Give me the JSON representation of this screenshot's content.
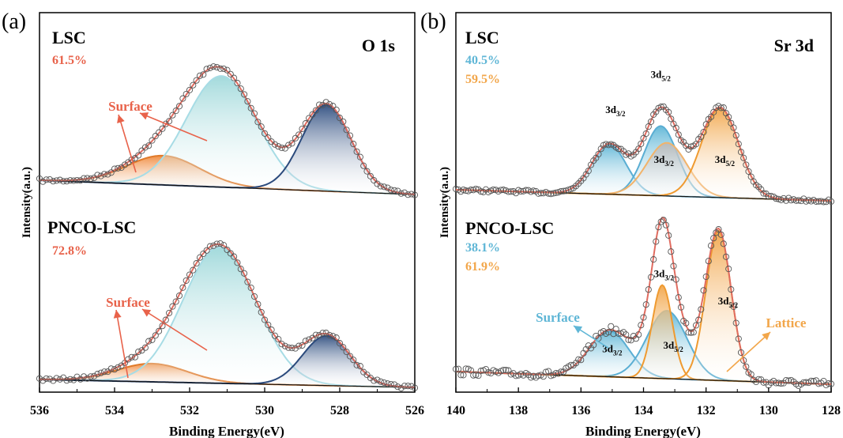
{
  "chart_data": [
    {
      "panel_label": "(a)",
      "type": "line",
      "element": "O 1s",
      "xlabel": "Binding Energy(eV)",
      "ylabel": "Intensity(a.u.)",
      "xlim": [
        536,
        526
      ],
      "xticks": [
        "536",
        "534",
        "532",
        "530",
        "528",
        "526"
      ],
      "subplots": [
        {
          "sample": "LSC",
          "percentages": [
            {
              "text": "61.5%",
              "color": "#e8624a"
            }
          ],
          "annotations": [
            {
              "text": "Surface",
              "color": "#e8624a"
            }
          ],
          "peaks": [
            {
              "center": 532.7,
              "fwhm": 2.3,
              "height": 0.2,
              "fill": "#f08a3c",
              "edge": "#e07a2a",
              "role": "surface"
            },
            {
              "center": 531.15,
              "fwhm": 2.2,
              "height": 0.76,
              "fill": "#9ed8da",
              "edge": "#a7dce5",
              "role": "bulk"
            },
            {
              "center": 528.35,
              "fwhm": 1.55,
              "height": 0.59,
              "fill": "#2f4e80",
              "edge": "#2b4a7c",
              "role": "lattice"
            }
          ]
        },
        {
          "sample": "PNCO-LSC",
          "percentages": [
            {
              "text": "72.8%",
              "color": "#e8624a"
            }
          ],
          "annotations": [
            {
              "text": "Surface",
              "color": "#e8624a"
            }
          ],
          "peaks": [
            {
              "center": 533.0,
              "fwhm": 2.2,
              "height": 0.11,
              "fill": "#f08a3c",
              "edge": "#e07a2a",
              "role": "surface"
            },
            {
              "center": 531.2,
              "fwhm": 2.3,
              "height": 0.82,
              "fill": "#9ed8da",
              "edge": "#a7dce5",
              "role": "bulk"
            },
            {
              "center": 528.35,
              "fwhm": 1.5,
              "height": 0.3,
              "fill": "#2f4e80",
              "edge": "#2b4a7c",
              "role": "lattice"
            }
          ]
        }
      ]
    },
    {
      "panel_label": "(b)",
      "type": "line",
      "element": "Sr 3d",
      "xlabel": "Binding Energy(eV)",
      "ylabel": "Intensity(a.u.)",
      "xlim": [
        140,
        128
      ],
      "xticks": [
        "140",
        "138",
        "136",
        "134",
        "132",
        "130",
        "128"
      ],
      "subplots": [
        {
          "sample": "LSC",
          "percentages": [
            {
              "text": "40.5%",
              "color": "#5fb6d6"
            },
            {
              "text": "59.5%",
              "color": "#f2a64a"
            }
          ],
          "annotations": [],
          "peak_labels": [
            {
              "base": "3d",
              "sub": "3/2",
              "energy": 134.9,
              "rel": 0.52
            },
            {
              "base": "3d",
              "sub": "5/2",
              "energy": 133.45,
              "rel": 0.73
            },
            {
              "base": "3d",
              "sub": "3/2",
              "energy": 133.35,
              "rel": 0.22
            },
            {
              "base": "3d",
              "sub": "5/2",
              "energy": 131.4,
              "rel": 0.22
            }
          ],
          "peaks": [
            {
              "center": 135.1,
              "fwhm": 1.3,
              "height": 0.3,
              "fill": "#5fb6d6",
              "edge": "#5aaed3",
              "role": "surface"
            },
            {
              "center": 133.45,
              "fwhm": 1.25,
              "height": 0.42,
              "fill": "#5fb6d6",
              "edge": "#5aaed3",
              "role": "surface"
            },
            {
              "center": 133.25,
              "fwhm": 1.5,
              "height": 0.32,
              "fill": "#b9b9b9",
              "edge": "#f2b36a",
              "role": "lattice"
            },
            {
              "center": 131.55,
              "fwhm": 1.4,
              "height": 0.54,
              "fill": "#f2a64a",
              "edge": "#ef9a30",
              "role": "lattice"
            }
          ]
        },
        {
          "sample": "PNCO-LSC",
          "percentages": [
            {
              "text": "38.1%",
              "color": "#5fb6d6"
            },
            {
              "text": "61.9%",
              "color": "#f2a64a"
            }
          ],
          "annotations": [
            {
              "text": "Surface",
              "color": "#5fb6d6"
            },
            {
              "text": "Lattice",
              "color": "#f2a64a"
            }
          ],
          "peak_labels": [
            {
              "base": "3d",
              "sub": "3/2",
              "energy": 133.35,
              "rel": 0.62
            },
            {
              "base": "3d",
              "sub": "5/2",
              "energy": 131.3,
              "rel": 0.46
            },
            {
              "base": "3d",
              "sub": "3/2",
              "energy": 135.0,
              "rel": 0.18
            },
            {
              "base": "3d",
              "sub": "5/2",
              "energy": 133.05,
              "rel": 0.2
            }
          ],
          "peaks": [
            {
              "center": 135.1,
              "fwhm": 1.5,
              "height": 0.27,
              "fill": "#5fb6d6",
              "edge": "#5aaed3",
              "role": "surface"
            },
            {
              "center": 133.25,
              "fwhm": 1.5,
              "height": 0.4,
              "fill": "#5fb6d6",
              "edge": "#5aaed3",
              "role": "surface"
            },
            {
              "center": 133.4,
              "fwhm": 0.75,
              "height": 0.55,
              "fill": "#f2a64a",
              "edge": "#ef9a30",
              "role": "lattice"
            },
            {
              "center": 131.6,
              "fwhm": 0.95,
              "height": 0.88,
              "fill": "#f2a64a",
              "edge": "#ef9a30",
              "role": "lattice"
            }
          ]
        }
      ]
    }
  ],
  "style": {
    "fit_line_color": "#e06c60",
    "background_line_color": "#111111",
    "marker_edge_color": "#555555"
  }
}
